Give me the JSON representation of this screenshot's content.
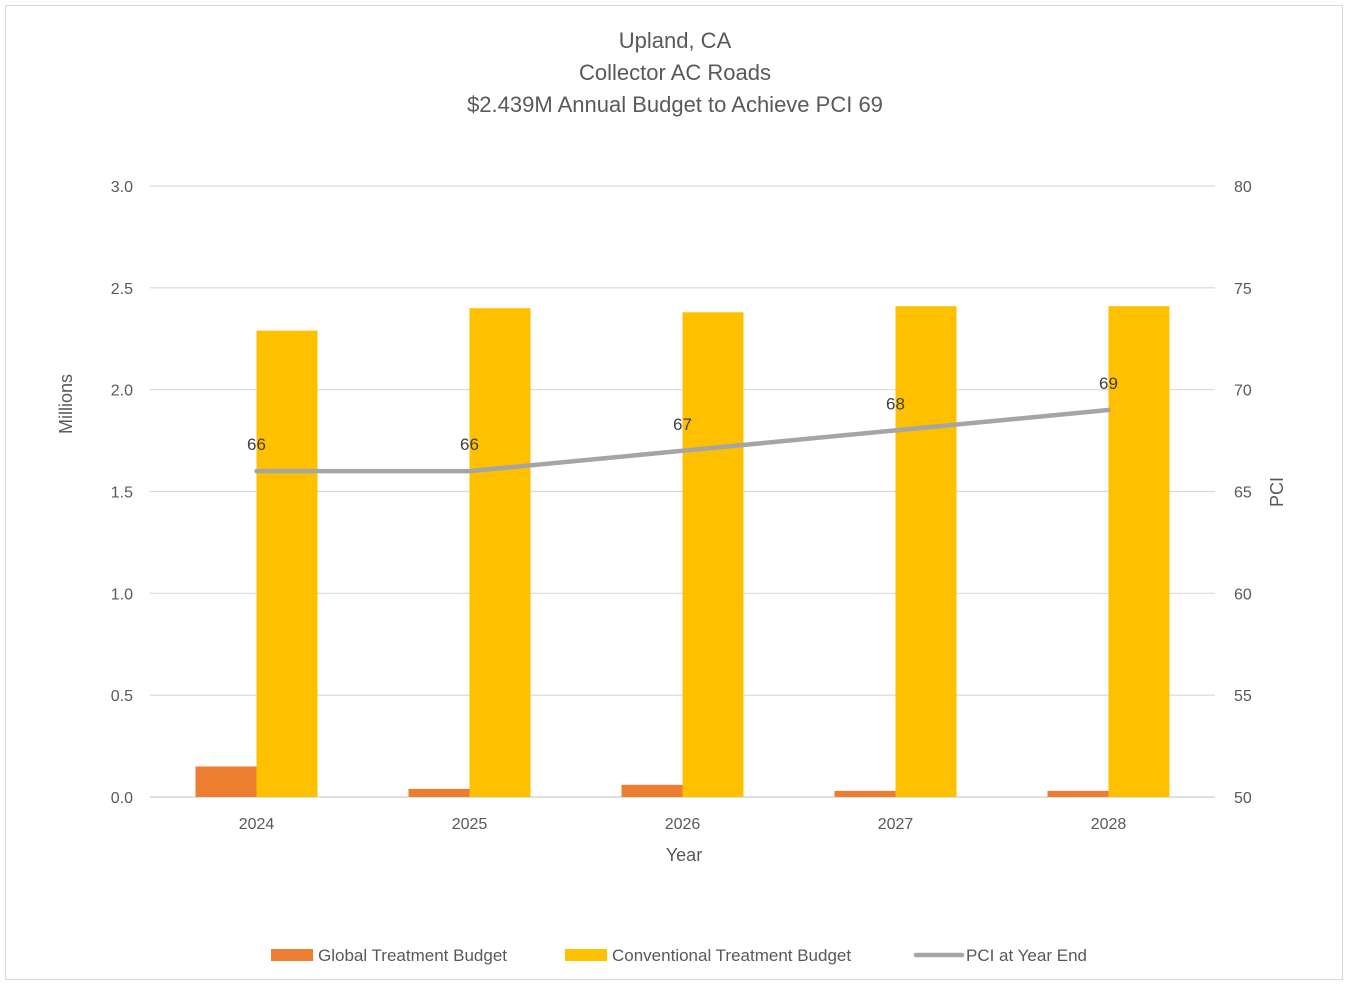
{
  "chart_data": {
    "type": "bar",
    "title_lines": [
      "Upland, CA",
      "Collector AC Roads",
      "$2.439M Annual Budget to Achieve PCI 69"
    ],
    "categories": [
      "2024",
      "2025",
      "2026",
      "2027",
      "2028"
    ],
    "xlabel": "Year",
    "ylabel": "Millions",
    "y2label": "PCI",
    "ylim": [
      0,
      3.0
    ],
    "y_ticks": [
      "0.0",
      "0.5",
      "1.0",
      "1.5",
      "2.0",
      "2.5",
      "3.0"
    ],
    "y2lim": [
      50,
      80
    ],
    "y2_ticks": [
      "50",
      "55",
      "60",
      "65",
      "70",
      "75",
      "80"
    ],
    "grid": true,
    "legend_position": "bottom",
    "series": [
      {
        "name": "Global Treatment Budget",
        "type": "bar",
        "axis": "left",
        "color": "#ED7D31",
        "values": [
          0.15,
          0.04,
          0.06,
          0.03,
          0.03
        ]
      },
      {
        "name": "Conventional Treatment  Budget",
        "type": "bar",
        "axis": "left",
        "color": "#FFC000",
        "values": [
          2.29,
          2.4,
          2.38,
          2.41,
          2.41
        ]
      },
      {
        "name": "PCI at Year End",
        "type": "line",
        "axis": "right",
        "color": "#A5A5A5",
        "values": [
          66,
          66,
          67,
          68,
          69
        ],
        "labels": [
          "66",
          "66",
          "67",
          "68",
          "69"
        ]
      }
    ]
  }
}
